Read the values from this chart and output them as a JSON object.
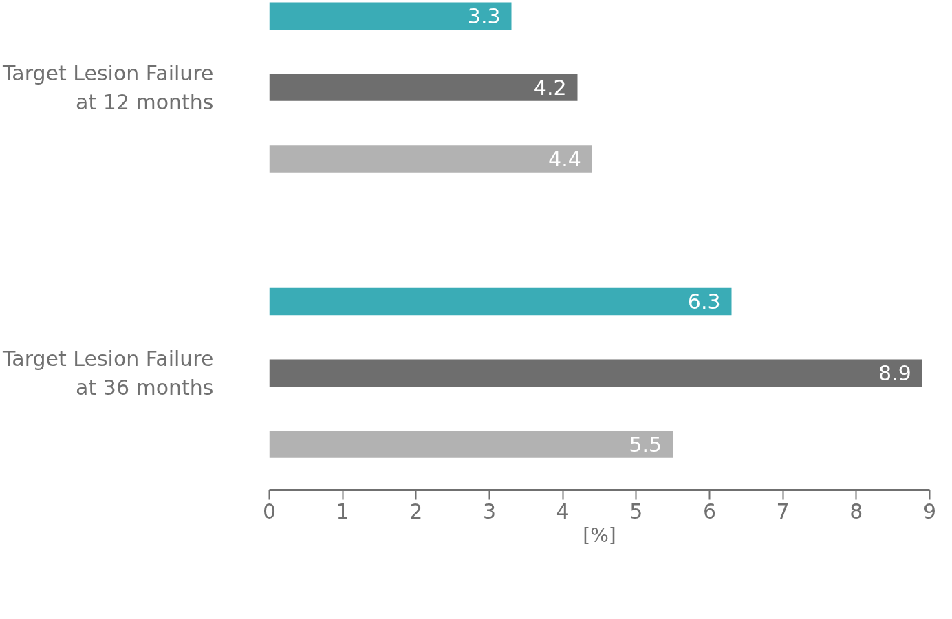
{
  "chart_data": {
    "type": "bar",
    "orientation": "horizontal",
    "categories": [
      "Target Lesion Failure at 12 months",
      "Target Lesion Failure at 36 months"
    ],
    "series": [
      {
        "color": "#3aacb6",
        "values": [
          3.3,
          6.3
        ]
      },
      {
        "color": "#6e6e6e",
        "values": [
          4.2,
          8.9
        ]
      },
      {
        "color": "#b2b2b2",
        "values": [
          4.4,
          5.5
        ]
      }
    ],
    "xlabel": "[%]",
    "xlim": [
      0,
      9
    ],
    "xticks": [
      0,
      1,
      2,
      3,
      4,
      5,
      6,
      7,
      8,
      9
    ],
    "data_labels": true,
    "grid": false
  }
}
